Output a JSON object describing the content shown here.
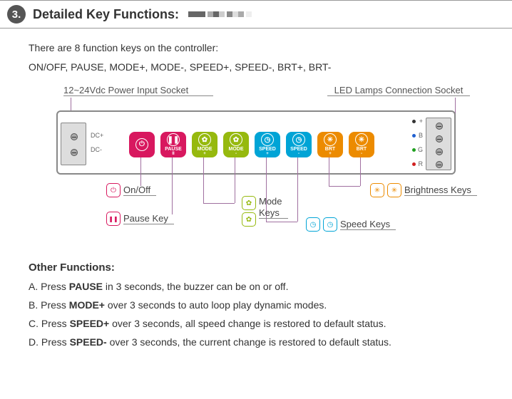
{
  "section": {
    "number": "3.",
    "title": "Detailed Key Functions:"
  },
  "intro": {
    "line1": "There are 8 function keys on the controller:",
    "line2": "ON/OFF, PAUSE, MODE+, MODE-, SPEED+, SPEED-, BRT+, BRT-"
  },
  "diagram": {
    "topLabelLeft": "12~24Vdc Power Input Socket",
    "topLabelRight": "LED Lamps Connection Socket",
    "dcPlus": "DC+",
    "dcMinus": "DC-",
    "outPlus": "+",
    "outB": "B",
    "outG": "G",
    "outR": "R",
    "keys": [
      {
        "name": "onoff",
        "icon": "⏻",
        "label": "",
        "sub": "",
        "color": "#d8185f"
      },
      {
        "name": "pause",
        "icon": "❚❚",
        "label": "PAUSE",
        "sub": "II",
        "color": "#d8185f"
      },
      {
        "name": "modep",
        "icon": "✿",
        "label": "MODE",
        "sub": "+",
        "color": "#96b90e"
      },
      {
        "name": "modem",
        "icon": "✿",
        "label": "MODE",
        "sub": "-",
        "color": "#96b90e"
      },
      {
        "name": "speedp",
        "icon": "◷",
        "label": "SPEED",
        "sub": "+",
        "color": "#00a4d6"
      },
      {
        "name": "speedm",
        "icon": "◷",
        "label": "SPEED",
        "sub": "-",
        "color": "#00a4d6"
      },
      {
        "name": "brtp",
        "icon": "✳",
        "label": "BRT",
        "sub": "+",
        "color": "#ec8b00"
      },
      {
        "name": "brtm",
        "icon": "✳",
        "label": "BRT",
        "sub": "-",
        "color": "#ec8b00"
      }
    ],
    "legends": {
      "onoff": "On/Off",
      "pause": "Pause Key",
      "mode": "Mode Keys",
      "speed": "Speed Keys",
      "brt": "Brightness Keys"
    },
    "colors": {
      "pink": "#d8185f",
      "green": "#96b90e",
      "cyan": "#00a4d6",
      "orange": "#ec8b00",
      "leadline": "#a070a0",
      "bodyBorder": "#888888"
    }
  },
  "other": {
    "title": "Other Functions:",
    "items": [
      {
        "prefix": "A. Press ",
        "bold": "PAUSE",
        "rest": " in 3 seconds, the buzzer can be on or off."
      },
      {
        "prefix": "B. Press ",
        "bold": "MODE+",
        "rest": " over 3 seconds to auto loop play dynamic modes."
      },
      {
        "prefix": "C. Press ",
        "bold": "SPEED+",
        "rest": " over 3 seconds, all speed change is restored to default status."
      },
      {
        "prefix": "D. Press ",
        "bold": "SPEED-",
        "rest": " over 3 seconds, the current change is restored to default status."
      }
    ]
  },
  "deco_colors": [
    "#666",
    "#666",
    "#666",
    "#aaa",
    "#666",
    "#ccc",
    "#888",
    "#ddd",
    "#aaa",
    "#eee"
  ]
}
